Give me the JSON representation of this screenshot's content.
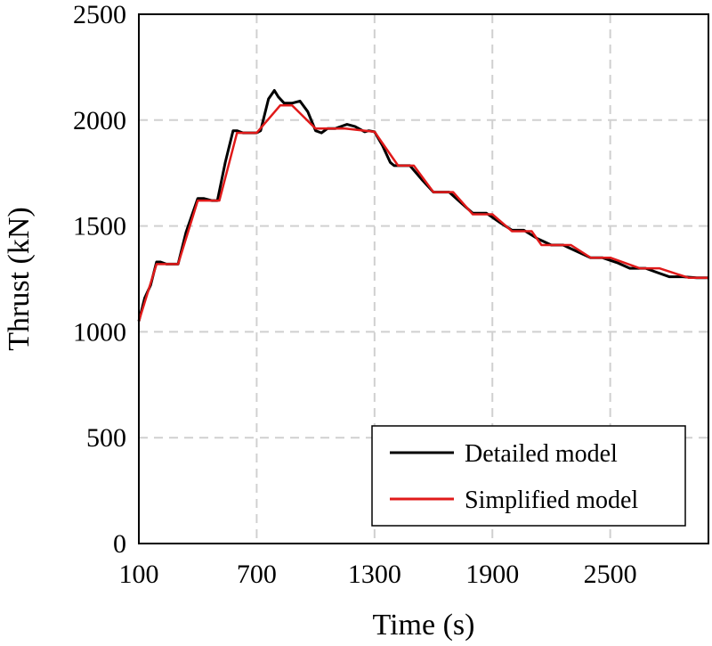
{
  "chart_data": {
    "type": "line",
    "title": "",
    "xlabel": "Time (s)",
    "ylabel": "Thrust (kN)",
    "xlim": [
      100,
      3000
    ],
    "ylim": [
      0,
      2500
    ],
    "xticks": [
      100,
      700,
      1300,
      1900,
      2500
    ],
    "xtick_labels": [
      "100",
      "700",
      "1300",
      "1900",
      "2500"
    ],
    "yticks": [
      0,
      500,
      1000,
      1500,
      2000,
      2500
    ],
    "ytick_labels": [
      "0",
      "500",
      "1000",
      "1500",
      "2000",
      "2500"
    ],
    "grid": true,
    "legend_position": "bottom-right",
    "series": [
      {
        "name": "Detailed model",
        "color": "#000000",
        "x": [
          100,
          130,
          160,
          190,
          210,
          240,
          300,
          340,
          400,
          430,
          470,
          500,
          540,
          580,
          600,
          630,
          700,
          720,
          760,
          790,
          810,
          840,
          880,
          920,
          960,
          1000,
          1030,
          1060,
          1100,
          1130,
          1160,
          1200,
          1220,
          1250,
          1270,
          1300,
          1340,
          1380,
          1400,
          1480,
          1540,
          1600,
          1680,
          1740,
          1800,
          1870,
          1940,
          2000,
          2060,
          2130,
          2200,
          2260,
          2330,
          2400,
          2460,
          2540,
          2600,
          2680,
          2740,
          2800,
          2870,
          2940,
          3000
        ],
        "y": [
          1050,
          1160,
          1220,
          1330,
          1330,
          1320,
          1320,
          1470,
          1630,
          1630,
          1620,
          1620,
          1800,
          1950,
          1950,
          1940,
          1940,
          1950,
          2100,
          2140,
          2110,
          2080,
          2080,
          2090,
          2040,
          1950,
          1940,
          1960,
          1960,
          1970,
          1980,
          1970,
          1960,
          1945,
          1950,
          1945,
          1880,
          1800,
          1785,
          1785,
          1720,
          1660,
          1660,
          1610,
          1560,
          1560,
          1515,
          1480,
          1480,
          1440,
          1410,
          1410,
          1380,
          1350,
          1350,
          1325,
          1300,
          1300,
          1280,
          1260,
          1260,
          1255,
          1255
        ]
      },
      {
        "name": "Simplified model",
        "color": "#e01a1a",
        "x": [
          100,
          190,
          260,
          300,
          400,
          490,
          510,
          600,
          700,
          820,
          880,
          1000,
          1150,
          1300,
          1420,
          1500,
          1600,
          1700,
          1800,
          1900,
          2000,
          2100,
          2150,
          2300,
          2400,
          2500,
          2650,
          2750,
          2900,
          3000
        ],
        "y": [
          1050,
          1320,
          1320,
          1320,
          1620,
          1620,
          1620,
          1940,
          1940,
          2070,
          2070,
          1960,
          1960,
          1945,
          1785,
          1785,
          1660,
          1660,
          1555,
          1555,
          1475,
          1475,
          1410,
          1410,
          1350,
          1350,
          1300,
          1300,
          1255,
          1255
        ]
      }
    ]
  }
}
